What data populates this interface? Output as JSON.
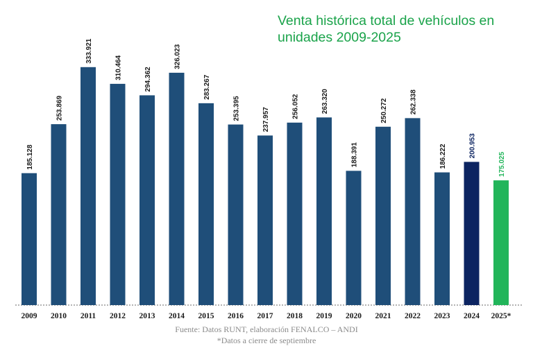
{
  "chart_data": {
    "type": "bar",
    "title": "Venta histórica total de vehículos en unidades 2009-2025",
    "xlabel": "",
    "ylabel": "",
    "categories": [
      "2009",
      "2010",
      "2011",
      "2012",
      "2013",
      "2014",
      "2015",
      "2016",
      "2017",
      "2018",
      "2019",
      "2020",
      "2021",
      "2022",
      "2023",
      "2024",
      "2025*"
    ],
    "values": [
      185128,
      253869,
      333921,
      310464,
      294362,
      326023,
      283267,
      253395,
      237957,
      256052,
      263320,
      188391,
      250272,
      262338,
      186222,
      200953,
      175025
    ],
    "value_labels": [
      "185.128",
      "253.869",
      "333.921",
      "310.464",
      "294.362",
      "326.023",
      "283.267",
      "253.395",
      "237.957",
      "256.052",
      "263.320",
      "188.391",
      "250.272",
      "262.338",
      "186.222",
      "200.953",
      "175.025"
    ],
    "ylim": [
      0,
      360000
    ],
    "grid": false,
    "legend": "none",
    "colors": {
      "default": "#1f4e79",
      "2024": "#0c2461",
      "2025*": "#22b55a",
      "label_default": "#1a1a1a",
      "label_2024": "#0c2461",
      "label_2025": "#22b55a"
    }
  },
  "source_text": "Fuente: Datos RUNT, elaboración FENALCO – ANDI",
  "note_text": "*Datos a cierre de septiembre"
}
